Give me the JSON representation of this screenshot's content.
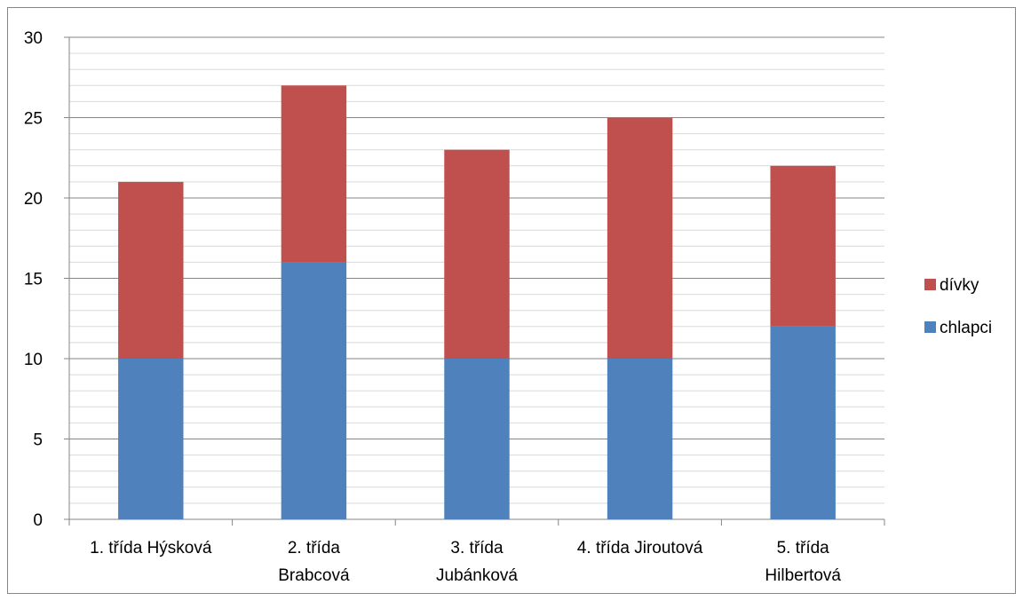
{
  "chart_data": {
    "type": "bar",
    "stacked": true,
    "categories": [
      [
        "1. třída Hýsková"
      ],
      [
        "2. třída",
        "Brabcová"
      ],
      [
        "3. třída",
        "Jubánková"
      ],
      [
        "4. třída Jiroutová"
      ],
      [
        "5. třída",
        "Hilbertová"
      ]
    ],
    "series": [
      {
        "name": "chlapci",
        "color": "#4F81BD",
        "values": [
          10,
          16,
          10,
          10,
          12
        ]
      },
      {
        "name": "dívky",
        "color": "#C0504D",
        "values": [
          11,
          11,
          13,
          15,
          10
        ]
      }
    ],
    "ylim": [
      0,
      30
    ],
    "y_major_ticks": [
      0,
      5,
      10,
      15,
      20,
      25,
      30
    ],
    "y_minor_step": 1,
    "grid": true,
    "legend_position": "right",
    "legend_order": [
      "dívky",
      "chlapci"
    ]
  }
}
